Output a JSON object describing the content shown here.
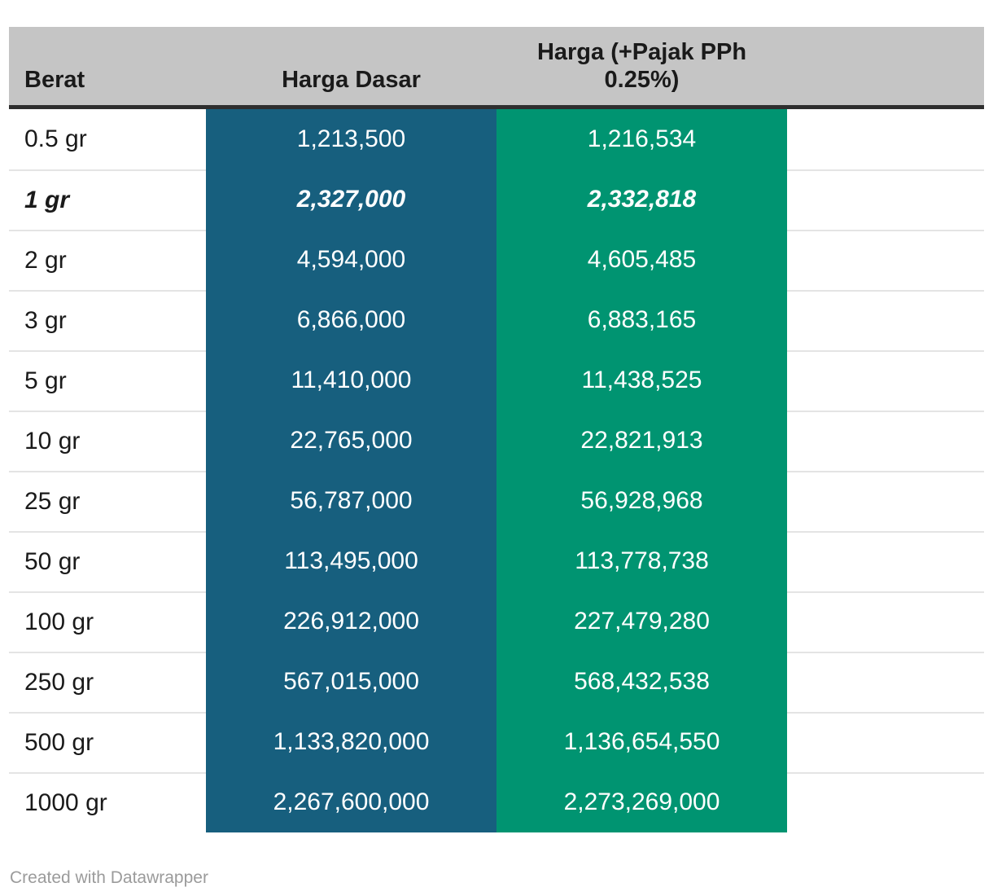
{
  "table": {
    "columns": {
      "berat": "Berat",
      "harga_dasar": "Harga Dasar",
      "harga_pajak": "Harga (+Pajak PPh 0.25%)"
    },
    "rows": [
      {
        "berat": "0.5 gr",
        "harga_dasar": "1,213,500",
        "harga_pajak": "1,216,534",
        "emphasized": false
      },
      {
        "berat": "1 gr",
        "harga_dasar": "2,327,000",
        "harga_pajak": "2,332,818",
        "emphasized": true
      },
      {
        "berat": "2 gr",
        "harga_dasar": "4,594,000",
        "harga_pajak": "4,605,485",
        "emphasized": false
      },
      {
        "berat": "3 gr",
        "harga_dasar": "6,866,000",
        "harga_pajak": "6,883,165",
        "emphasized": false
      },
      {
        "berat": "5 gr",
        "harga_dasar": "11,410,000",
        "harga_pajak": "11,438,525",
        "emphasized": false
      },
      {
        "berat": "10 gr",
        "harga_dasar": "22,765,000",
        "harga_pajak": "22,821,913",
        "emphasized": false
      },
      {
        "berat": "25 gr",
        "harga_dasar": "56,787,000",
        "harga_pajak": "56,928,968",
        "emphasized": false
      },
      {
        "berat": "50 gr",
        "harga_dasar": "113,495,000",
        "harga_pajak": "113,778,738",
        "emphasized": false
      },
      {
        "berat": "100 gr",
        "harga_dasar": "226,912,000",
        "harga_pajak": "227,479,280",
        "emphasized": false
      },
      {
        "berat": "250 gr",
        "harga_dasar": "567,015,000",
        "harga_pajak": "568,432,538",
        "emphasized": false
      },
      {
        "berat": "500 gr",
        "harga_dasar": "1,133,820,000",
        "harga_pajak": "1,136,654,550",
        "emphasized": false
      },
      {
        "berat": "1000 gr",
        "harga_dasar": "2,267,600,000",
        "harga_pajak": "2,273,269,000",
        "emphasized": false
      }
    ]
  },
  "footer": {
    "credit": "Created with Datawrapper"
  },
  "colors": {
    "header_bg": "#c5c5c5",
    "header_border": "#2e2e2e",
    "harga_dasar_column": "#175f7e",
    "harga_pajak_column": "#009471",
    "row_separator": "#e4e4e4",
    "text_dark": "#1a1a1a",
    "text_white": "#ffffff",
    "footer_text": "#9b9b9b"
  },
  "chart_data": {
    "type": "table",
    "title": "",
    "categories": [
      "0.5 gr",
      "1 gr",
      "2 gr",
      "3 gr",
      "5 gr",
      "10 gr",
      "25 gr",
      "50 gr",
      "100 gr",
      "250 gr",
      "500 gr",
      "1000 gr"
    ],
    "series": [
      {
        "name": "Harga Dasar",
        "values": [
          1213500,
          2327000,
          4594000,
          6866000,
          11410000,
          22765000,
          56787000,
          113495000,
          226912000,
          567015000,
          1133820000,
          2267600000
        ]
      },
      {
        "name": "Harga (+Pajak PPh 0.25%)",
        "values": [
          1216534,
          2332818,
          4605485,
          6883165,
          11438525,
          22821913,
          56928968,
          113778738,
          227479280,
          568432538,
          1136654550,
          2273269000
        ]
      }
    ],
    "emphasized_category": "1 gr",
    "layout": "column headers on gray band; Harga Dasar column blue, Pajak column green; weight labels on white"
  }
}
